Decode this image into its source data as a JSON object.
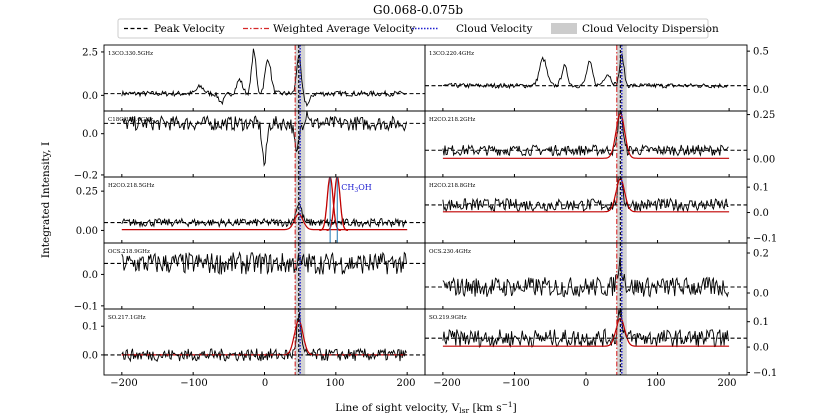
{
  "chart_data": {
    "type": "line",
    "title": "G0.068-0.075b",
    "xlabel": "Line of sight velocity, V$_{lsr}$ [km s$^{-1}$]",
    "xlabel_main": "Line of sight velocity, V",
    "xlabel_sub": "lsr",
    "xlabel_unit": " [km s",
    "xlabel_unit_sup": "−1",
    "xlabel_close": "]",
    "ylabel": "Integrated Intensity, I",
    "xlim": [
      -225,
      225
    ],
    "xticks": [
      -200,
      -100,
      0,
      100,
      200
    ],
    "xtick_labels": [
      "−200",
      "−100",
      "0",
      "100",
      "200"
    ],
    "legend": {
      "placement": "top",
      "entries": [
        {
          "label": "Peak Velocity",
          "style": "dashed",
          "color": "#000000"
        },
        {
          "label": "Weighted Average Velocity",
          "style": "dashdot",
          "color": "#d62728"
        },
        {
          "label": "Cloud Velocity",
          "style": "dotted",
          "color": "#1f1fd0"
        },
        {
          "label": "Cloud Velocity Dispersion",
          "style": "band",
          "color": "#cccccc"
        }
      ]
    },
    "cloud_velocity": 50,
    "peak_velocity": 48,
    "weighted_average_velocity": 43,
    "dispersion_range": [
      43,
      57
    ],
    "panels": [
      {
        "id": "p1",
        "col": 0,
        "row": 0,
        "label": "13CO.330.5GHz",
        "ylim": [
          -0.9,
          2.9
        ],
        "yticks": [
          0.0,
          2.5
        ],
        "ytick_labels": [
          "0.0",
          "2.5"
        ],
        "axis_side": "left",
        "baseline": 0.1,
        "noise": 0.15,
        "features": [
          {
            "center": -35,
            "amp": 0.8,
            "width": 4
          },
          {
            "center": -15,
            "amp": 2.5,
            "width": 3
          },
          {
            "center": 5,
            "amp": 2.0,
            "width": 4
          },
          {
            "center": 48,
            "amp": 2.2,
            "width": 3
          },
          {
            "center": 60,
            "amp": -0.6,
            "width": 4
          },
          {
            "center": -60,
            "amp": -0.5,
            "width": 4
          },
          {
            "center": -90,
            "amp": 0.4,
            "width": 5
          }
        ]
      },
      {
        "id": "p2",
        "col": 1,
        "row": 0,
        "label": "13CO.220.4GHz",
        "ylim": [
          -0.28,
          0.58
        ],
        "yticks": [
          0.0,
          0.5
        ],
        "ytick_labels": [
          "0.0",
          "0.5"
        ],
        "axis_side": "right",
        "baseline": 0.05,
        "noise": 0.03,
        "features": [
          {
            "center": -60,
            "amp": 0.35,
            "width": 5
          },
          {
            "center": -30,
            "amp": 0.25,
            "width": 4
          },
          {
            "center": 5,
            "amp": 0.3,
            "width": 4
          },
          {
            "center": 50,
            "amp": 0.4,
            "width": 3
          },
          {
            "center": 30,
            "amp": 0.15,
            "width": 5
          }
        ]
      },
      {
        "id": "p3",
        "col": 0,
        "row": 1,
        "label": "C18O.329.6GHz",
        "ylim": [
          -0.21,
          0.11
        ],
        "yticks": [
          0.0,
          -0.2
        ],
        "ytick_labels": [
          "0.0",
          "−0.2"
        ],
        "axis_side": "left",
        "baseline": 0.05,
        "noise": 0.035,
        "features": [
          {
            "center": 0,
            "amp": -0.2,
            "width": 3
          },
          {
            "center": 45,
            "amp": -0.15,
            "width": 3
          },
          {
            "center": 60,
            "amp": 0.06,
            "width": 3
          }
        ]
      },
      {
        "id": "p4",
        "col": 1,
        "row": 1,
        "label": "H2CO.218.2GHz",
        "ylim": [
          -0.1,
          0.27
        ],
        "yticks": [
          0.0,
          0.25
        ],
        "ytick_labels": [
          "0.00",
          "0.25"
        ],
        "axis_side": "right",
        "baseline": 0.05,
        "noise": 0.03,
        "features": [
          {
            "center": 48,
            "amp": 0.26,
            "width": 3
          }
        ],
        "fit": {
          "center": 48,
          "amp": 0.25,
          "width": 6
        }
      },
      {
        "id": "p5",
        "col": 0,
        "row": 2,
        "label": "H2CO.218.5GHz",
        "ylim": [
          -0.08,
          0.34
        ],
        "yticks": [
          0.0,
          0.25
        ],
        "ytick_labels": [
          "0.00",
          "0.25"
        ],
        "axis_side": "left",
        "baseline": 0.05,
        "noise": 0.025,
        "features": [
          {
            "center": 48,
            "amp": 0.12,
            "width": 4
          }
        ],
        "fit": {
          "center": 48,
          "amp": 0.1,
          "width": 6
        },
        "extra_fits": [
          {
            "center": 92,
            "amp": 0.34,
            "width": 4
          },
          {
            "center": 102,
            "amp": 0.34,
            "width": 4
          }
        ],
        "annotation": {
          "label": "CH",
          "sub": "3",
          "suffix": "OH",
          "v1": 92,
          "v2": 102
        }
      },
      {
        "id": "p6",
        "col": 1,
        "row": 2,
        "label": "H2CO.218.8GHz",
        "ylim": [
          -0.12,
          0.14
        ],
        "yticks": [
          -0.1,
          0.0,
          0.1
        ],
        "ytick_labels": [
          "−0.1",
          "0.0",
          "0.1"
        ],
        "axis_side": "right",
        "baseline": 0.03,
        "noise": 0.025,
        "features": [
          {
            "center": 48,
            "amp": 0.14,
            "width": 3
          }
        ],
        "fit": {
          "center": 48,
          "amp": 0.13,
          "width": 6
        }
      },
      {
        "id": "p7",
        "col": 0,
        "row": 3,
        "label": "OCS.218.9GHz",
        "ylim": [
          -0.11,
          0.1
        ],
        "yticks": [
          0.0,
          -0.1
        ],
        "ytick_labels": [
          "0.0",
          "−0.1"
        ],
        "axis_side": "left",
        "baseline": 0.035,
        "noise": 0.035,
        "features": []
      },
      {
        "id": "p8",
        "col": 1,
        "row": 3,
        "label": "OCS.230.4GHz",
        "ylim": [
          -0.08,
          0.25
        ],
        "yticks": [
          0.0,
          0.2
        ],
        "ytick_labels": [
          "0.0",
          "0.2"
        ],
        "axis_side": "right",
        "baseline": 0.03,
        "noise": 0.05,
        "features": [
          {
            "center": 48,
            "amp": 0.12,
            "width": 4
          }
        ]
      },
      {
        "id": "p9",
        "col": 0,
        "row": 4,
        "label": "SO.217.1GHz",
        "ylim": [
          -0.07,
          0.16
        ],
        "yticks": [
          0.0,
          0.1
        ],
        "ytick_labels": [
          "0.0",
          "0.1"
        ],
        "axis_side": "left",
        "baseline": 0.0,
        "noise": 0.022,
        "features": [
          {
            "center": 48,
            "amp": 0.14,
            "width": 3
          }
        ],
        "fit": {
          "center": 48,
          "amp": 0.12,
          "width": 6
        }
      },
      {
        "id": "p10",
        "col": 1,
        "row": 4,
        "label": "SO.219.9GHz",
        "ylim": [
          -0.11,
          0.15
        ],
        "yticks": [
          -0.1,
          0.0,
          0.1
        ],
        "ytick_labels": [
          "−0.1",
          "0.0",
          "0.1"
        ],
        "axis_side": "right",
        "baseline": 0.035,
        "noise": 0.035,
        "features": [
          {
            "center": 48,
            "amp": 0.12,
            "width": 3
          }
        ],
        "fit": {
          "center": 48,
          "amp": 0.11,
          "width": 6
        }
      }
    ]
  }
}
